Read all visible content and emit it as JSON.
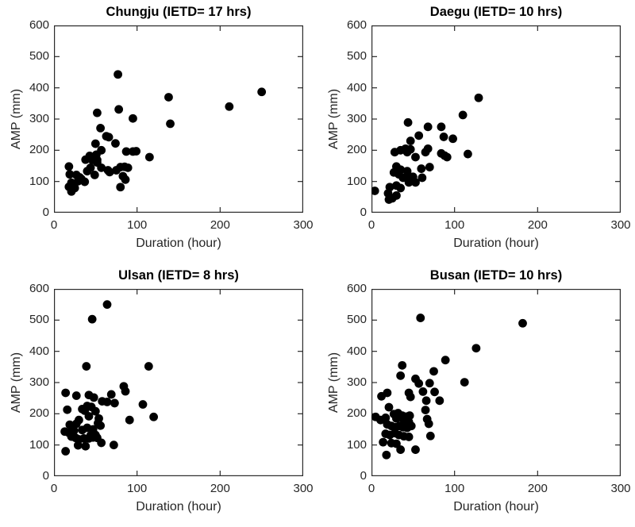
{
  "figure": {
    "background_color": "#ffffff",
    "marker_color": "#000000",
    "axis_color": "#2b2b2b",
    "text_color": "#262626",
    "title_color": "#000000"
  },
  "chart_data": [
    {
      "type": "scatter",
      "title": "Chungju (IETD= 17 hrs)",
      "xlabel": "Duration (hour)",
      "ylabel": "AMP (mm)",
      "xlim": [
        0,
        300
      ],
      "ylim": [
        0,
        600
      ],
      "xticks": [
        0,
        100,
        200,
        300
      ],
      "yticks": [
        0,
        100,
        200,
        300,
        400,
        500,
        600
      ],
      "grid": false,
      "legend": "none",
      "marker": "filled-circle",
      "points": [
        [
          18,
          148
        ],
        [
          19,
          123
        ],
        [
          21,
          96
        ],
        [
          18,
          83
        ],
        [
          21,
          68
        ],
        [
          22,
          75
        ],
        [
          25,
          79
        ],
        [
          24,
          89
        ],
        [
          27,
          121
        ],
        [
          29,
          101
        ],
        [
          31,
          113
        ],
        [
          33,
          108
        ],
        [
          37,
          99
        ],
        [
          38,
          170
        ],
        [
          40,
          133
        ],
        [
          43,
          182
        ],
        [
          44,
          144
        ],
        [
          46,
          169
        ],
        [
          49,
          121
        ],
        [
          50,
          221
        ],
        [
          51,
          186
        ],
        [
          52,
          169
        ],
        [
          52,
          161
        ],
        [
          52,
          320
        ],
        [
          56,
          271
        ],
        [
          57,
          200
        ],
        [
          57,
          144
        ],
        [
          63,
          245
        ],
        [
          65,
          136
        ],
        [
          66,
          242
        ],
        [
          67,
          130
        ],
        [
          74,
          222
        ],
        [
          75,
          136
        ],
        [
          77,
          443
        ],
        [
          78,
          331
        ],
        [
          80,
          146
        ],
        [
          80,
          82
        ],
        [
          83,
          117
        ],
        [
          85,
          147
        ],
        [
          86,
          106
        ],
        [
          87,
          196
        ],
        [
          89,
          144
        ],
        [
          95,
          302
        ],
        [
          95,
          196
        ],
        [
          99,
          197
        ],
        [
          115,
          178
        ],
        [
          138,
          370
        ],
        [
          140,
          285
        ],
        [
          211,
          340
        ],
        [
          250,
          387
        ]
      ]
    },
    {
      "type": "scatter",
      "title": "Daegu (IETD= 10 hrs)",
      "xlabel": "Duration (hour)",
      "ylabel": "AMP (mm)",
      "xlim": [
        0,
        300
      ],
      "ylim": [
        0,
        600
      ],
      "xticks": [
        0,
        100,
        200,
        300
      ],
      "yticks": [
        0,
        100,
        200,
        300,
        400,
        500,
        600
      ],
      "grid": false,
      "legend": "none",
      "marker": "filled-circle",
      "points": [
        [
          4,
          70
        ],
        [
          20,
          62
        ],
        [
          21,
          42
        ],
        [
          22,
          82
        ],
        [
          25,
          46
        ],
        [
          27,
          129
        ],
        [
          28,
          194
        ],
        [
          30,
          87
        ],
        [
          30,
          148
        ],
        [
          30,
          55
        ],
        [
          33,
          123
        ],
        [
          35,
          138
        ],
        [
          35,
          200
        ],
        [
          35,
          79
        ],
        [
          38,
          112
        ],
        [
          41,
          205
        ],
        [
          43,
          133
        ],
        [
          43,
          194
        ],
        [
          44,
          120
        ],
        [
          44,
          289
        ],
        [
          45,
          97
        ],
        [
          47,
          230
        ],
        [
          47,
          203
        ],
        [
          49,
          102
        ],
        [
          50,
          115
        ],
        [
          53,
          178
        ],
        [
          53,
          97
        ],
        [
          57,
          247
        ],
        [
          60,
          141
        ],
        [
          61,
          112
        ],
        [
          65,
          194
        ],
        [
          68,
          275
        ],
        [
          68,
          205
        ],
        [
          70,
          146
        ],
        [
          84,
          275
        ],
        [
          84,
          190
        ],
        [
          87,
          243
        ],
        [
          88,
          183
        ],
        [
          91,
          178
        ],
        [
          98,
          237
        ],
        [
          110,
          313
        ],
        [
          116,
          188
        ],
        [
          129,
          368
        ]
      ]
    },
    {
      "type": "scatter",
      "title": "Ulsan (IETD= 8 hrs)",
      "xlabel": "Duration (hour)",
      "ylabel": "AMP (mm)",
      "xlim": [
        0,
        300
      ],
      "ylim": [
        0,
        600
      ],
      "xticks": [
        0,
        100,
        200,
        300
      ],
      "yticks": [
        0,
        100,
        200,
        300,
        400,
        500,
        600
      ],
      "grid": false,
      "legend": "none",
      "marker": "filled-circle",
      "points": [
        [
          13,
          143
        ],
        [
          14,
          80
        ],
        [
          14,
          267
        ],
        [
          16,
          213
        ],
        [
          18,
          139
        ],
        [
          19,
          165
        ],
        [
          21,
          127
        ],
        [
          24,
          146
        ],
        [
          26,
          123
        ],
        [
          27,
          168
        ],
        [
          27,
          258
        ],
        [
          29,
          99
        ],
        [
          30,
          118
        ],
        [
          30,
          180
        ],
        [
          34,
          148
        ],
        [
          34,
          215
        ],
        [
          36,
          121
        ],
        [
          37,
          210
        ],
        [
          38,
          96
        ],
        [
          39,
          352
        ],
        [
          40,
          155
        ],
        [
          40,
          225
        ],
        [
          42,
          121
        ],
        [
          42,
          192
        ],
        [
          42,
          260
        ],
        [
          44,
          130
        ],
        [
          45,
          222
        ],
        [
          46,
          503
        ],
        [
          47,
          124
        ],
        [
          47,
          150
        ],
        [
          48,
          252
        ],
        [
          50,
          132
        ],
        [
          50,
          208
        ],
        [
          52,
          123
        ],
        [
          53,
          170
        ],
        [
          54,
          185
        ],
        [
          56,
          162
        ],
        [
          57,
          107
        ],
        [
          58,
          240
        ],
        [
          64,
          238
        ],
        [
          64,
          550
        ],
        [
          69,
          262
        ],
        [
          72,
          100
        ],
        [
          73,
          234
        ],
        [
          84,
          288
        ],
        [
          86,
          272
        ],
        [
          91,
          180
        ],
        [
          107,
          230
        ],
        [
          114,
          352
        ],
        [
          120,
          190
        ]
      ]
    },
    {
      "type": "scatter",
      "title": "Busan (IETD= 10 hrs)",
      "xlabel": "Duration (hour)",
      "ylabel": "AMP (mm)",
      "xlim": [
        0,
        300
      ],
      "ylim": [
        0,
        600
      ],
      "xticks": [
        0,
        100,
        200,
        300
      ],
      "yticks": [
        0,
        100,
        200,
        300,
        400,
        500,
        600
      ],
      "grid": false,
      "legend": "none",
      "marker": "filled-circle",
      "points": [
        [
          5,
          190
        ],
        [
          11,
          180
        ],
        [
          12,
          256
        ],
        [
          14,
          109
        ],
        [
          17,
          136
        ],
        [
          17,
          187
        ],
        [
          18,
          68
        ],
        [
          19,
          166
        ],
        [
          19,
          267
        ],
        [
          21,
          221
        ],
        [
          22,
          132
        ],
        [
          24,
          106
        ],
        [
          24,
          161
        ],
        [
          27,
          199
        ],
        [
          28,
          138
        ],
        [
          29,
          157
        ],
        [
          30,
          104
        ],
        [
          30,
          185
        ],
        [
          32,
          202
        ],
        [
          33,
          132
        ],
        [
          34,
          161
        ],
        [
          35,
          85
        ],
        [
          35,
          322
        ],
        [
          37,
          194
        ],
        [
          37,
          355
        ],
        [
          38,
          157
        ],
        [
          39,
          128
        ],
        [
          39,
          178
        ],
        [
          42,
          191
        ],
        [
          43,
          155
        ],
        [
          45,
          126
        ],
        [
          45,
          174
        ],
        [
          45,
          267
        ],
        [
          46,
          194
        ],
        [
          47,
          254
        ],
        [
          48,
          161
        ],
        [
          53,
          85
        ],
        [
          53,
          312
        ],
        [
          57,
          297
        ],
        [
          59,
          507
        ],
        [
          62,
          271
        ],
        [
          65,
          212
        ],
        [
          66,
          242
        ],
        [
          67,
          183
        ],
        [
          69,
          168
        ],
        [
          70,
          298
        ],
        [
          71,
          129
        ],
        [
          75,
          336
        ],
        [
          76,
          270
        ],
        [
          82,
          242
        ],
        [
          89,
          372
        ],
        [
          112,
          301
        ],
        [
          126,
          410
        ],
        [
          182,
          490
        ]
      ]
    }
  ]
}
